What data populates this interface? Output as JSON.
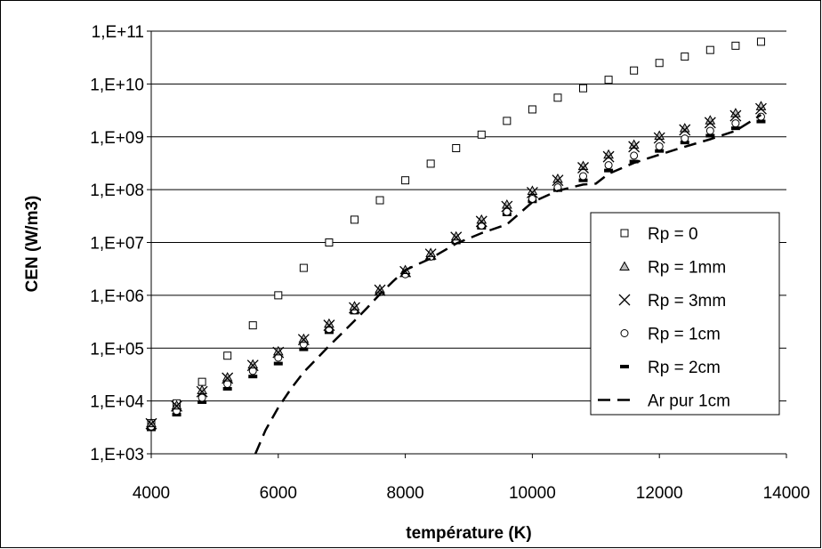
{
  "chart_data": {
    "type": "scatter",
    "xlabel": "température (K)",
    "ylabel": "CEN (W/m3)",
    "xlim": [
      4000,
      14000
    ],
    "ylim_log10": [
      3,
      11
    ],
    "yscale": "log",
    "grid": "horizontal",
    "legend_position": "right",
    "x_ticks": [
      4000,
      6000,
      8000,
      10000,
      12000,
      14000
    ],
    "x_tick_labels": [
      "4000",
      "6000",
      "8000",
      "10000",
      "12000",
      "14000"
    ],
    "y_ticks_log10": [
      3,
      4,
      5,
      6,
      7,
      8,
      9,
      10,
      11
    ],
    "y_tick_labels": [
      "1,E+03",
      "1,E+04",
      "1,E+05",
      "1,E+06",
      "1,E+07",
      "1,E+08",
      "1,E+09",
      "1,E+10",
      "1,E+11"
    ],
    "series": [
      {
        "name": "Rp = 0",
        "marker": "square",
        "x": [
          4000,
          4400,
          4800,
          5200,
          5600,
          6000,
          6400,
          6800,
          7200,
          7600,
          8000,
          8400,
          8800,
          9200,
          9600,
          10000,
          10400,
          10800,
          11200,
          11600,
          12000,
          12400,
          12800,
          13200,
          13600
        ],
        "y": [
          3800,
          9000,
          23000,
          72000,
          270000,
          1000000,
          3300000,
          10000000,
          27000000,
          63000000,
          150000000,
          310000000,
          610000000,
          1100000000,
          2000000000,
          3300000000,
          5500000000,
          8300000000,
          12000000000,
          18000000000,
          25000000000,
          33000000000,
          44000000000,
          53000000000,
          63000000000
        ]
      },
      {
        "name": "Rp = 1mm",
        "marker": "triangle",
        "x": [
          4000,
          4400,
          4800,
          5200,
          5600,
          6000,
          6400,
          6800,
          7200,
          7600,
          8000,
          8400,
          8800,
          9200,
          9600,
          10000,
          10400,
          10800,
          11200,
          11600,
          12000,
          12400,
          12800,
          13200,
          13600
        ],
        "y": [
          3800,
          8200,
          16000,
          28000,
          49000,
          87000,
          150000,
          290000,
          620000,
          1300000,
          3000000,
          6300000,
          13000000,
          27000000,
          52000000,
          95000000,
          160000000,
          280000000,
          460000000,
          710000000,
          1050000000,
          1450000000,
          2050000000,
          2800000000,
          3800000000
        ]
      },
      {
        "name": "Rp = 3mm",
        "marker": "cross",
        "x": [
          4000,
          4400,
          4800,
          5200,
          5600,
          6000,
          6400,
          6800,
          7200,
          7600,
          8000,
          8400,
          8800,
          9200,
          9600,
          10000,
          10400,
          10800,
          11200,
          11600,
          12000,
          12400,
          12800,
          13200,
          13600
        ],
        "y": [
          3700,
          8000,
          15000,
          27000,
          47000,
          83000,
          145000,
          270000,
          580000,
          1250000,
          2800000,
          6000000,
          12500000,
          25000000,
          48000000,
          88000000,
          150000000,
          260000000,
          420000000,
          650000000,
          950000000,
          1350000000,
          1850000000,
          2500000000,
          3400000000
        ]
      },
      {
        "name": "Rp = 1cm",
        "marker": "circle",
        "x": [
          4000,
          4400,
          4800,
          5200,
          5600,
          6000,
          6400,
          6800,
          7200,
          7600,
          8000,
          8400,
          8800,
          9200,
          9600,
          10000,
          10400,
          10800,
          11200,
          11600,
          12000,
          12400,
          12800,
          13200,
          13600
        ],
        "y": [
          3300,
          6500,
          11500,
          21000,
          37000,
          66000,
          118000,
          230000,
          520000,
          1150000,
          2500000,
          5400000,
          11000000,
          21000000,
          38000000,
          67000000,
          110000000,
          180000000,
          290000000,
          440000000,
          660000000,
          930000000,
          1300000000,
          1800000000,
          2400000000
        ]
      },
      {
        "name": "Rp = 2cm",
        "marker": "dash",
        "x": [
          4000,
          4400,
          4800,
          5200,
          5600,
          6000,
          6400,
          6800,
          7200,
          7600,
          8000,
          8400,
          8800,
          9200,
          9600,
          10000,
          10400,
          10800,
          11200,
          11600,
          12000,
          12400,
          12800,
          13200,
          13600
        ],
        "y": [
          2900,
          5500,
          9500,
          17000,
          29000,
          51000,
          95000,
          200000,
          470000,
          1100000,
          2400000,
          5000000,
          10000000,
          19000000,
          34000000,
          60000000,
          98000000,
          150000000,
          230000000,
          340000000,
          540000000,
          780000000,
          1050000000,
          1450000000,
          1950000000
        ]
      },
      {
        "name": "Ar pur 1cm",
        "marker": "dashed-line",
        "x": [
          5640,
          5800,
          6000,
          6200,
          6400,
          6600,
          6800,
          7000,
          7200,
          7400,
          7600,
          7800,
          8000,
          8400,
          8800,
          9200,
          9600,
          10000,
          10400,
          10800,
          11000,
          11200,
          11600,
          12000,
          12400,
          12800,
          13200,
          13600
        ],
        "y": [
          1000,
          2800,
          7500,
          17000,
          35000,
          62000,
          110000,
          190000,
          330000,
          580000,
          1050000,
          1800000,
          3000000,
          5000000,
          9500000,
          15000000,
          22000000,
          58000000,
          95000000,
          125000000,
          130000000,
          200000000,
          320000000,
          460000000,
          650000000,
          900000000,
          1300000000,
          2600000000
        ]
      }
    ]
  }
}
